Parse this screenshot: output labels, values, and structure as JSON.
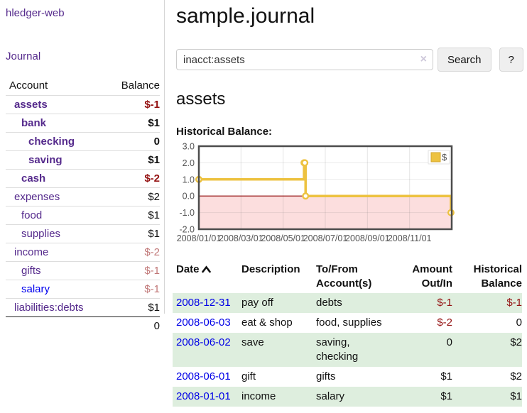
{
  "app": {
    "title": "hledger-web"
  },
  "sidebar": {
    "journal_label": "Journal",
    "headers": {
      "account": "Account",
      "balance": "Balance"
    },
    "accounts": [
      {
        "name": "assets",
        "level": 1,
        "bold": true,
        "balance": "$-1",
        "neg": "strong",
        "link": "purple"
      },
      {
        "name": "bank",
        "level": 2,
        "bold": true,
        "balance": "$1",
        "neg": "none",
        "link": "purple"
      },
      {
        "name": "checking",
        "level": 3,
        "bold": true,
        "balance": "0",
        "neg": "none",
        "link": "purple"
      },
      {
        "name": "saving",
        "level": 3,
        "bold": true,
        "balance": "$1",
        "neg": "none",
        "link": "purple"
      },
      {
        "name": "cash",
        "level": 2,
        "bold": true,
        "balance": "$-2",
        "neg": "strong",
        "link": "purple"
      },
      {
        "name": "expenses",
        "level": 1,
        "bold": false,
        "balance": "$2",
        "neg": "none",
        "link": "purple"
      },
      {
        "name": "food",
        "level": 2,
        "bold": false,
        "balance": "$1",
        "neg": "none",
        "link": "purple"
      },
      {
        "name": "supplies",
        "level": 2,
        "bold": false,
        "balance": "$1",
        "neg": "none",
        "link": "purple"
      },
      {
        "name": "income",
        "level": 1,
        "bold": false,
        "balance": "$-2",
        "neg": "soft",
        "link": "purple"
      },
      {
        "name": "gifts",
        "level": 2,
        "bold": false,
        "balance": "$-1",
        "neg": "soft",
        "link": "purple"
      },
      {
        "name": "salary",
        "level": 2,
        "bold": false,
        "balance": "$-1",
        "neg": "soft",
        "link": "blue"
      },
      {
        "name": "liabilities:debts",
        "level": 1,
        "bold": false,
        "balance": "$1",
        "neg": "none",
        "link": "purple"
      }
    ],
    "total": "0"
  },
  "header": {
    "title": "sample.journal"
  },
  "search": {
    "value": "inacct:assets",
    "clear_icon": "×",
    "button_label": "Search",
    "help_label": "?"
  },
  "main": {
    "account_heading": "assets",
    "chart_label": "Historical Balance:"
  },
  "chart_data": {
    "type": "line",
    "step": true,
    "title": "Historical Balance:",
    "legend": {
      "position": "top-right",
      "entries": [
        "$"
      ]
    },
    "series": [
      {
        "name": "$",
        "color": "#edc240",
        "points": [
          {
            "date": "2008-01-01",
            "x": 0.0,
            "y": 1
          },
          {
            "date": "2008-06-01",
            "x": 0.416,
            "y": 2
          },
          {
            "date": "2008-06-02",
            "x": 0.419,
            "y": 2
          },
          {
            "date": "2008-06-03",
            "x": 0.422,
            "y": 0
          },
          {
            "date": "2008-12-31",
            "x": 0.997,
            "y": -1
          }
        ]
      }
    ],
    "ylim": [
      -2,
      3
    ],
    "yticks": [
      3,
      2,
      1,
      0,
      -1,
      -2
    ],
    "ytick_labels": [
      "3.0",
      "2.0",
      "1.0",
      "0.0",
      "-1.0",
      "-2.0"
    ],
    "xticks": [
      "2008/01/01",
      "2008/03/01",
      "2008/05/01",
      "2008/07/01",
      "2008/09/01",
      "2008/11/01"
    ],
    "grid": true,
    "negative_fill": "#fcdede",
    "zero_line_color": "#8b0000",
    "border_color": "#4c4c4c",
    "tick_color": "#545454"
  },
  "register": {
    "sort": "ascending",
    "headers": {
      "date": "Date",
      "description": "Description",
      "tofrom": "To/From Account(s)",
      "amount": "Amount Out/In",
      "balance": "Historical Balance"
    },
    "rows": [
      {
        "date": "2008-12-31",
        "description": "pay off",
        "accounts": "debts",
        "amount": "$-1",
        "amount_neg": true,
        "balance": "$-1",
        "balance_neg": true,
        "shaded": true
      },
      {
        "date": "2008-06-03",
        "description": "eat & shop",
        "accounts": "food, supplies",
        "amount": "$-2",
        "amount_neg": true,
        "balance": "0",
        "balance_neg": false,
        "shaded": false
      },
      {
        "date": "2008-06-02",
        "description": "save",
        "accounts": "saving, checking",
        "amount": "0",
        "amount_neg": false,
        "balance": "$2",
        "balance_neg": false,
        "shaded": true
      },
      {
        "date": "2008-06-01",
        "description": "gift",
        "accounts": "gifts",
        "amount": "$1",
        "amount_neg": false,
        "balance": "$2",
        "balance_neg": false,
        "shaded": false
      },
      {
        "date": "2008-01-01",
        "description": "income",
        "accounts": "salary",
        "amount": "$1",
        "amount_neg": false,
        "balance": "$1",
        "balance_neg": false,
        "shaded": true
      }
    ]
  },
  "colors": {
    "link_purple": "#552a8c",
    "link_blue": "#0000ee",
    "negative_strong": "#941111",
    "negative_soft": "#c17878",
    "row_stripe_green": "#deeede",
    "chart_line_gold": "#edc240"
  }
}
